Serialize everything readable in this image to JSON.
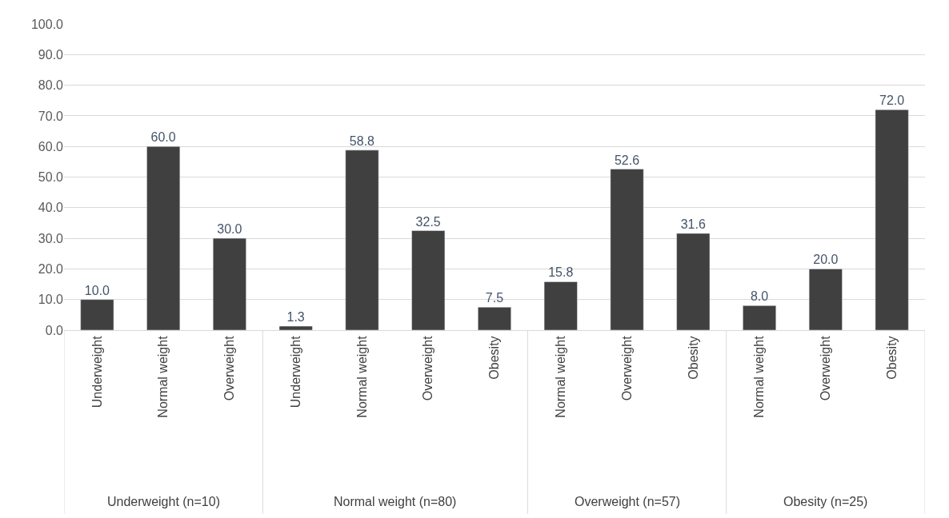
{
  "chart_data": {
    "type": "bar",
    "categories": [
      "Underweight",
      "Normal weight",
      "Overweight",
      "Underweight",
      "Normal weight",
      "Overweight",
      "Obesity",
      "Normal weight",
      "Overweight",
      "Obesity",
      "Normal weight",
      "Overweight",
      "Obesity"
    ],
    "values": [
      10.0,
      60.0,
      30.0,
      1.3,
      58.8,
      32.5,
      7.5,
      15.8,
      52.6,
      31.6,
      8.0,
      20.0,
      72.0
    ],
    "value_labels": [
      "10.0",
      "60.0",
      "30.0",
      "1.3",
      "58.8",
      "32.5",
      "7.5",
      "15.8",
      "52.6",
      "31.6",
      "8.0",
      "20.0",
      "72.0"
    ],
    "color": "#404040",
    "ylim": [
      0,
      100
    ],
    "yticks": [
      {
        "value": 0,
        "label": "0.0"
      },
      {
        "value": 10,
        "label": "10.0"
      },
      {
        "value": 20,
        "label": "20.0"
      },
      {
        "value": 30,
        "label": "30.0"
      },
      {
        "value": 40,
        "label": "40.0"
      },
      {
        "value": 50,
        "label": "50.0"
      },
      {
        "value": 60,
        "label": "60.0"
      },
      {
        "value": 70,
        "label": "70.0"
      },
      {
        "value": 80,
        "label": "80.0"
      },
      {
        "value": 90,
        "label": "90.0"
      },
      {
        "value": 100,
        "label": "100.0"
      }
    ],
    "grid": "y",
    "annotations": [
      "Underweight (n=10)",
      "Normal weight (n=80)",
      "Overweight (n=57)",
      "Obesity (n=25)"
    ]
  }
}
